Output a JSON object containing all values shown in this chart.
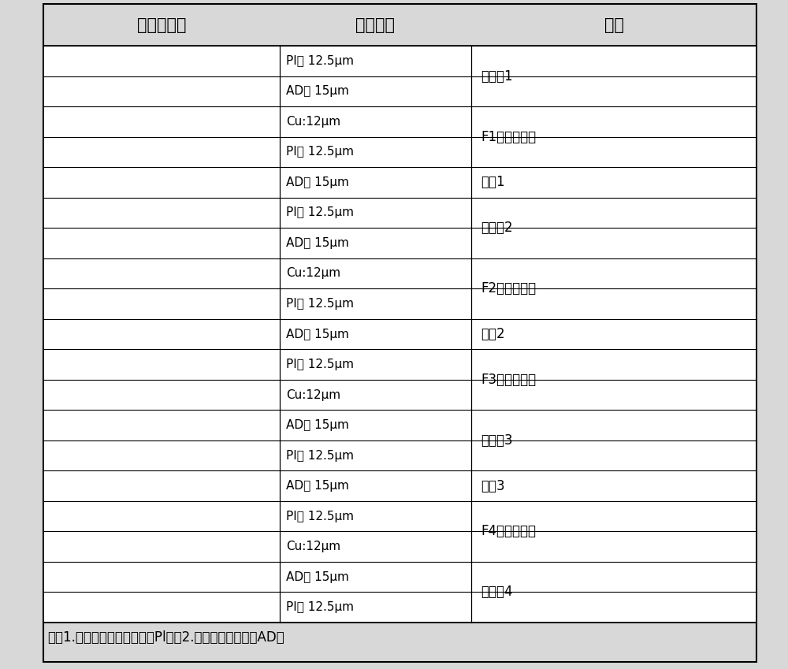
{
  "title_row": [
    "四层板结构",
    "材料厚度",
    "材料"
  ],
  "note": "注：1.聚酰亚胺（英文表示：Pl）；2.纯胶（英文表示：AD）",
  "bg_color": "#d8d8d8",
  "table_bg": "#ffffff",
  "border_color": "#000000",
  "text_color": "#000000",
  "rows": [
    {
      "thickness": "PI： 12.5μm",
      "material": "覆盖膜1",
      "mat_span": 2
    },
    {
      "thickness": "AD： 15μm",
      "material": null,
      "mat_span": 0
    },
    {
      "thickness": "Cu:12μm",
      "material": "F1无胶电解铜",
      "mat_span": 2
    },
    {
      "thickness": "PI： 12.5μm",
      "material": null,
      "mat_span": 0
    },
    {
      "thickness": "AD： 15μm",
      "material": "纯胶1",
      "mat_span": 1
    },
    {
      "thickness": "PI： 12.5μm",
      "material": "覆盖膜2",
      "mat_span": 2
    },
    {
      "thickness": "AD： 15μm",
      "material": null,
      "mat_span": 0
    },
    {
      "thickness": "Cu:12μm",
      "material": "F2无胶电解铜",
      "mat_span": 2
    },
    {
      "thickness": "PI： 12.5μm",
      "material": null,
      "mat_span": 0
    },
    {
      "thickness": "AD： 15μm",
      "material": "纯胶2",
      "mat_span": 1
    },
    {
      "thickness": "PI： 12.5μm",
      "material": "F3无胶电解铜",
      "mat_span": 2
    },
    {
      "thickness": "Cu:12μm",
      "material": null,
      "mat_span": 0
    },
    {
      "thickness": "AD： 15μm",
      "material": "覆盖膜3",
      "mat_span": 2
    },
    {
      "thickness": "PI： 12.5μm",
      "material": null,
      "mat_span": 0
    },
    {
      "thickness": "AD： 15μm",
      "material": "纯胶3",
      "mat_span": 1
    },
    {
      "thickness": "PI： 12.5μm",
      "material": "F4无胶电解铜",
      "mat_span": 2
    },
    {
      "thickness": "Cu:12μm",
      "material": null,
      "mat_span": 0
    },
    {
      "thickness": "AD： 15μm",
      "material": "覆盖膜4",
      "mat_span": 2
    },
    {
      "thickness": "PI： 12.5μm",
      "material": null,
      "mat_span": 0
    }
  ]
}
